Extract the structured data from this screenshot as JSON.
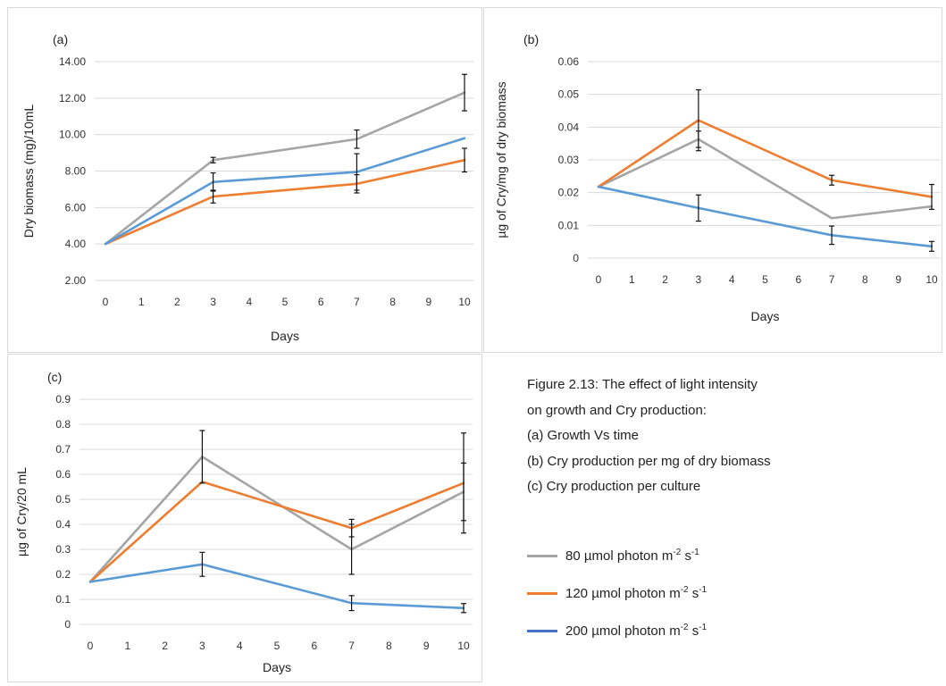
{
  "figure": {
    "caption_lines": [
      "Figure 2.13: The effect of light intensity",
      "on growth and Cry production:",
      "(a) Growth Vs time",
      "(b) Cry production per mg of dry biomass",
      "(c) Cry production per culture"
    ],
    "legend": [
      {
        "text": "80 µmol photon m",
        "sup1": "-2",
        "mid": " s",
        "sup2": "-1",
        "color": "#a5a5a5"
      },
      {
        "text": "120 µmol photon m",
        "sup1": "-2",
        "mid": " s",
        "sup2": "-1",
        "color": "#ed7d31"
      },
      {
        "text": "200 µmol photon m",
        "sup1": "-2",
        "mid": " s",
        "sup2": "-1",
        "color": "#4472c4"
      }
    ]
  },
  "chart_data": [
    {
      "type": "line",
      "panel_label": "(a)",
      "xlabel": "Days",
      "ylabel": "Dry biomass (mg)/10mL",
      "x_ticks": [
        "0",
        "1",
        "2",
        "3",
        "4",
        "5",
        "6",
        "7",
        "8",
        "9",
        "10"
      ],
      "y_ticks": [
        "2.00",
        "4.00",
        "6.00",
        "8.00",
        "10.00",
        "12.00",
        "14.00"
      ],
      "xlim": [
        0,
        10
      ],
      "ylim": [
        2,
        14
      ],
      "series": [
        {
          "name": "80 µmol photon m-2 s-1",
          "color": "#a5a5a5",
          "x": [
            0,
            3,
            7,
            10
          ],
          "y": [
            4.0,
            8.6,
            9.75,
            12.3
          ],
          "err": [
            0,
            0.15,
            0.5,
            1.0
          ]
        },
        {
          "name": "120 µmol photon m-2 s-1",
          "color": "#ed7d31",
          "x": [
            0,
            3,
            7,
            10
          ],
          "y": [
            4.0,
            6.6,
            7.3,
            8.6
          ],
          "err": [
            0,
            0.35,
            0.5,
            0.65
          ]
        },
        {
          "name": "200 µmol photon m-2 s-1",
          "color": "#5b9bd5",
          "x": [
            0,
            3,
            7,
            10
          ],
          "y": [
            4.0,
            7.4,
            7.95,
            9.8
          ],
          "err": [
            0,
            0.5,
            1.0,
            0
          ]
        }
      ]
    },
    {
      "type": "line",
      "panel_label": "(b)",
      "xlabel": "Days",
      "ylabel": "µg of Cry/mg of dry biomass",
      "x_ticks": [
        "0",
        "1",
        "2",
        "3",
        "4",
        "5",
        "6",
        "7",
        "8",
        "9",
        "10"
      ],
      "y_ticks": [
        "0",
        "0.01",
        "0.02",
        "0.03",
        "0.04",
        "0.05",
        "0.06"
      ],
      "xlim": [
        0,
        10
      ],
      "ylim": [
        0,
        0.06
      ],
      "series": [
        {
          "name": "80 µmol photon m-2 s-1",
          "color": "#a5a5a5",
          "x": [
            0,
            3,
            7,
            10
          ],
          "y": [
            0.0218,
            0.0363,
            0.0122,
            0.0158
          ],
          "err": [
            0,
            0.0025,
            0.0,
            0.0
          ]
        },
        {
          "name": "120 µmol photon m-2 s-1",
          "color": "#ed7d31",
          "x": [
            0,
            3,
            7,
            10
          ],
          "y": [
            0.0218,
            0.0421,
            0.0238,
            0.0187
          ],
          "err": [
            0,
            0.0093,
            0.0015,
            0.0038
          ]
        },
        {
          "name": "200 µmol photon m-2 s-1",
          "color": "#5b9bd5",
          "x": [
            0,
            3,
            7,
            10
          ],
          "y": [
            0.0218,
            0.0153,
            0.007,
            0.0036
          ],
          "err": [
            0,
            0.004,
            0.0028,
            0.0015
          ]
        }
      ]
    },
    {
      "type": "line",
      "panel_label": "(c)",
      "xlabel": "Days",
      "ylabel": "µg of Cry/20 mL",
      "x_ticks": [
        "0",
        "1",
        "2",
        "3",
        "4",
        "5",
        "6",
        "7",
        "8",
        "9",
        "10"
      ],
      "y_ticks": [
        "0",
        "0.1",
        "0.2",
        "0.3",
        "0.4",
        "0.5",
        "0.6",
        "0.7",
        "0.8",
        "0.9"
      ],
      "xlim": [
        0,
        10
      ],
      "ylim": [
        0,
        0.9
      ],
      "series": [
        {
          "name": "80 µmol photon m-2 s-1",
          "color": "#a5a5a5",
          "x": [
            0,
            3,
            7,
            10
          ],
          "y": [
            0.17,
            0.67,
            0.3,
            0.53
          ],
          "err": [
            0,
            0.105,
            0.1,
            0.115
          ]
        },
        {
          "name": "120 µmol photon m-2 s-1",
          "color": "#ed7d31",
          "x": [
            0,
            3,
            7,
            10
          ],
          "y": [
            0.17,
            0.57,
            0.385,
            0.565
          ],
          "err": [
            0,
            0.0,
            0.035,
            0.2
          ]
        },
        {
          "name": "200 µmol photon m-2 s-1",
          "color": "#5b9bd5",
          "x": [
            0,
            3,
            7,
            10
          ],
          "y": [
            0.17,
            0.24,
            0.085,
            0.065
          ],
          "err": [
            0,
            0.048,
            0.03,
            0.018
          ]
        }
      ]
    }
  ]
}
